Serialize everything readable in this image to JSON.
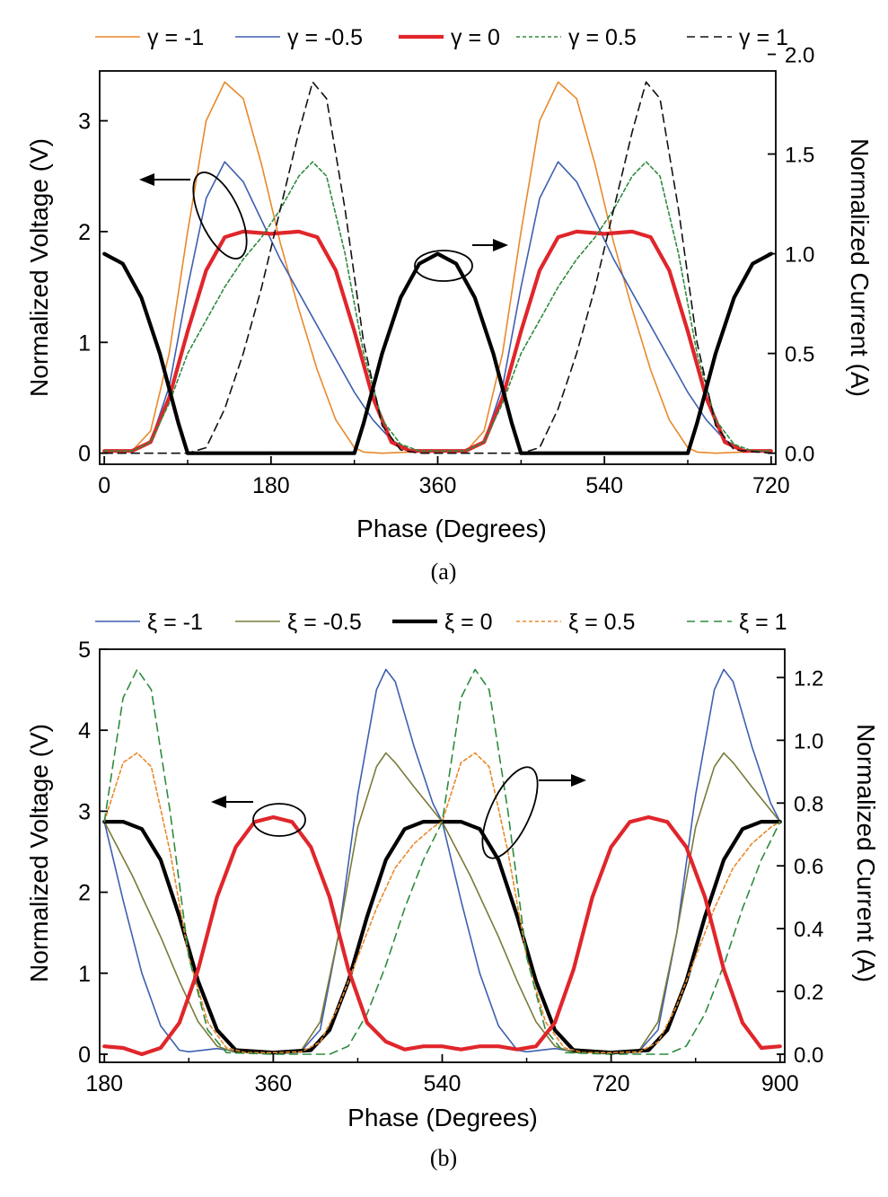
{
  "chart_data": [
    {
      "type": "line",
      "caption": "(a)",
      "xlabel": "Phase (Degrees)",
      "ylabel_left": "Normalized Voltage (V)",
      "ylabel_right": "Normalized Current (A)",
      "xlim": [
        -5,
        725
      ],
      "ylim_left": [
        -0.1,
        3.45
      ],
      "ylim_right": [
        -0.0556,
        1.9167
      ],
      "x_ticks": [
        0,
        180,
        360,
        540,
        720
      ],
      "y_left_ticks": [
        0,
        1,
        2,
        3
      ],
      "y_right_ticks": [
        "0.0",
        "0.5",
        "1.0",
        "1.5",
        "2.0"
      ],
      "legend_position": "top",
      "series": [
        {
          "name": "γ = -1",
          "color": "#e8892a",
          "dash": "solid",
          "width": 1.6,
          "axis": "left",
          "x": [
            0,
            30,
            50,
            70,
            90,
            110,
            130,
            150,
            170,
            190,
            210,
            230,
            250,
            270,
            280,
            300,
            330,
            360,
            390,
            410,
            430,
            450,
            470,
            490,
            510,
            530,
            550,
            570,
            590,
            610,
            630,
            640,
            660,
            690,
            720
          ],
          "values": [
            0.02,
            0.02,
            0.2,
            0.9,
            2.0,
            3.0,
            3.35,
            3.2,
            2.6,
            1.9,
            1.3,
            0.75,
            0.3,
            0.05,
            0.01,
            0.0,
            0.01,
            0.02,
            0.01,
            0.2,
            0.9,
            2.0,
            3.0,
            3.35,
            3.2,
            2.6,
            1.9,
            1.3,
            0.75,
            0.3,
            0.05,
            0.01,
            0.0,
            0.01,
            0.02
          ]
        },
        {
          "name": "γ = -0.5",
          "color": "#3f5fb0",
          "dash": "solid",
          "width": 1.6,
          "axis": "left",
          "x": [
            0,
            30,
            50,
            70,
            90,
            110,
            130,
            150,
            170,
            190,
            210,
            230,
            250,
            270,
            290,
            310,
            330,
            360,
            390,
            410,
            430,
            450,
            470,
            490,
            510,
            530,
            550,
            570,
            590,
            610,
            630,
            650,
            670,
            690,
            720
          ],
          "values": [
            0.02,
            0.02,
            0.1,
            0.6,
            1.5,
            2.3,
            2.63,
            2.45,
            2.1,
            1.75,
            1.45,
            1.15,
            0.85,
            0.55,
            0.3,
            0.12,
            0.03,
            0.02,
            0.02,
            0.1,
            0.6,
            1.5,
            2.3,
            2.63,
            2.45,
            2.1,
            1.75,
            1.45,
            1.15,
            0.85,
            0.55,
            0.3,
            0.12,
            0.03,
            0.02
          ]
        },
        {
          "name": "γ = 0",
          "color": "#e0262b",
          "dash": "solid",
          "width": 4.2,
          "axis": "left",
          "x": [
            0,
            30,
            50,
            70,
            90,
            110,
            130,
            150,
            180,
            210,
            230,
            250,
            270,
            290,
            310,
            330,
            360,
            390,
            410,
            430,
            450,
            470,
            490,
            510,
            540,
            570,
            590,
            610,
            630,
            650,
            670,
            690,
            720
          ],
          "values": [
            0.02,
            0.02,
            0.1,
            0.5,
            1.1,
            1.65,
            1.95,
            2.0,
            1.98,
            2.0,
            1.95,
            1.65,
            1.1,
            0.5,
            0.1,
            0.02,
            0.02,
            0.02,
            0.1,
            0.5,
            1.1,
            1.65,
            1.95,
            2.0,
            1.98,
            2.0,
            1.95,
            1.65,
            1.1,
            0.5,
            0.1,
            0.02,
            0.02
          ]
        },
        {
          "name": "γ = 0.5",
          "color": "#2e8b3e",
          "dash": "4,3",
          "width": 1.6,
          "axis": "left",
          "x": [
            0,
            30,
            50,
            70,
            90,
            110,
            130,
            150,
            170,
            190,
            210,
            225,
            240,
            260,
            280,
            300,
            320,
            340,
            360,
            390,
            410,
            430,
            450,
            470,
            490,
            510,
            530,
            550,
            570,
            585,
            600,
            620,
            640,
            660,
            680,
            700,
            720
          ],
          "values": [
            0.02,
            0.02,
            0.1,
            0.45,
            0.9,
            1.2,
            1.5,
            1.75,
            1.95,
            2.2,
            2.5,
            2.63,
            2.5,
            1.8,
            0.9,
            0.3,
            0.08,
            0.02,
            0.02,
            0.02,
            0.1,
            0.45,
            0.9,
            1.2,
            1.5,
            1.75,
            1.95,
            2.2,
            2.5,
            2.63,
            2.5,
            1.8,
            0.9,
            0.3,
            0.08,
            0.02,
            0.02
          ]
        },
        {
          "name": "γ = 1",
          "color": "#111111",
          "dash": "9,6",
          "width": 1.6,
          "axis": "left",
          "x": [
            0,
            60,
            90,
            110,
            130,
            150,
            170,
            190,
            210,
            225,
            240,
            260,
            280,
            300,
            320,
            340,
            360,
            420,
            450,
            470,
            490,
            510,
            530,
            550,
            570,
            585,
            600,
            620,
            640,
            660,
            680,
            720
          ],
          "values": [
            0.0,
            0.0,
            0.0,
            0.05,
            0.4,
            0.9,
            1.5,
            2.2,
            2.9,
            3.35,
            3.2,
            2.2,
            1.0,
            0.25,
            0.03,
            0.0,
            0.0,
            0.0,
            0.0,
            0.05,
            0.4,
            0.9,
            1.5,
            2.2,
            2.9,
            3.35,
            3.2,
            2.2,
            1.0,
            0.25,
            0.03,
            0.0
          ]
        },
        {
          "name": "",
          "color": "#000000",
          "dash": "solid",
          "width": 4.2,
          "axis": "right",
          "legend": false,
          "x": [
            0,
            20,
            40,
            60,
            80,
            90,
            180,
            270,
            280,
            300,
            320,
            340,
            360,
            380,
            400,
            420,
            440,
            450,
            540,
            630,
            640,
            660,
            680,
            700,
            720
          ],
          "values": [
            1.0,
            0.95,
            0.78,
            0.5,
            0.15,
            0.0,
            0.0,
            0.0,
            0.15,
            0.5,
            0.78,
            0.95,
            1.0,
            0.95,
            0.78,
            0.5,
            0.15,
            0.0,
            0.0,
            0.0,
            0.15,
            0.5,
            0.78,
            0.95,
            1.0
          ]
        }
      ]
    },
    {
      "type": "line",
      "caption": "(b)",
      "xlabel": "Phase (Degrees)",
      "ylabel_left": "Normalized Voltage (V)",
      "ylabel_right": "Normalized Current (A)",
      "xlim": [
        175,
        905
      ],
      "ylim_left": [
        -0.1,
        5.0
      ],
      "ylim_right": [
        -0.0258,
        1.29
      ],
      "x_ticks": [
        180,
        360,
        540,
        720,
        900
      ],
      "y_left_ticks": [
        0,
        1,
        2,
        3,
        4,
        5
      ],
      "y_right_ticks": [
        "0.0",
        "0.2",
        "0.4",
        "0.6",
        "0.8",
        "1.0",
        "1.2"
      ],
      "legend_position": "top",
      "series": [
        {
          "name": "ξ = -1",
          "color": "#3f5fb0",
          "dash": "solid",
          "width": 1.6,
          "axis": "left",
          "x": [
            180,
            200,
            220,
            240,
            260,
            270,
            300,
            330,
            360,
            390,
            410,
            430,
            450,
            470,
            480,
            490,
            510,
            530,
            540,
            560,
            580,
            600,
            620,
            630,
            660,
            690,
            720,
            750,
            770,
            790,
            810,
            830,
            840,
            850,
            870,
            890,
            900
          ],
          "values": [
            2.87,
            1.9,
            1.0,
            0.35,
            0.05,
            0.03,
            0.07,
            0.02,
            0.02,
            0.04,
            0.3,
            1.5,
            3.2,
            4.5,
            4.75,
            4.6,
            3.8,
            3.1,
            2.87,
            1.9,
            1.0,
            0.35,
            0.05,
            0.03,
            0.07,
            0.02,
            0.02,
            0.04,
            0.3,
            1.5,
            3.2,
            4.5,
            4.75,
            4.6,
            3.8,
            3.1,
            2.87
          ]
        },
        {
          "name": "ξ = -0.5",
          "color": "#7a7a3a",
          "dash": "solid",
          "width": 1.6,
          "axis": "left",
          "x": [
            180,
            210,
            240,
            260,
            280,
            300,
            320,
            360,
            390,
            410,
            430,
            450,
            470,
            480,
            490,
            510,
            540,
            570,
            600,
            620,
            640,
            660,
            680,
            720,
            750,
            770,
            790,
            810,
            830,
            840,
            850,
            870,
            900
          ],
          "values": [
            2.87,
            2.2,
            1.45,
            0.9,
            0.4,
            0.1,
            0.02,
            0.02,
            0.05,
            0.4,
            1.5,
            2.8,
            3.55,
            3.72,
            3.6,
            3.3,
            2.87,
            2.2,
            1.45,
            0.9,
            0.4,
            0.1,
            0.02,
            0.02,
            0.05,
            0.4,
            1.5,
            2.8,
            3.55,
            3.72,
            3.6,
            3.3,
            2.87
          ]
        },
        {
          "name": "ξ = 0",
          "color": "#000000",
          "dash": "solid",
          "width": 4.2,
          "axis": "left",
          "x": [
            180,
            200,
            220,
            240,
            260,
            280,
            300,
            320,
            360,
            400,
            420,
            440,
            460,
            480,
            500,
            520,
            540,
            560,
            580,
            600,
            620,
            640,
            660,
            680,
            720,
            760,
            780,
            800,
            820,
            840,
            860,
            880,
            900
          ],
          "values": [
            2.87,
            2.87,
            2.78,
            2.4,
            1.7,
            0.9,
            0.3,
            0.05,
            0.02,
            0.05,
            0.3,
            0.9,
            1.7,
            2.4,
            2.78,
            2.87,
            2.87,
            2.87,
            2.78,
            2.4,
            1.7,
            0.9,
            0.3,
            0.05,
            0.02,
            0.05,
            0.3,
            0.9,
            1.7,
            2.4,
            2.78,
            2.87,
            2.87
          ]
        },
        {
          "name": "ξ = 0.5",
          "color": "#e8892a",
          "dash": "4,3",
          "width": 1.6,
          "axis": "left",
          "x": [
            180,
            200,
            215,
            230,
            250,
            270,
            290,
            310,
            330,
            360,
            390,
            410,
            430,
            450,
            470,
            490,
            510,
            530,
            540,
            560,
            575,
            590,
            610,
            630,
            650,
            670,
            690,
            720,
            750,
            770,
            790,
            810,
            830,
            850,
            870,
            890,
            900
          ],
          "values": [
            2.87,
            3.6,
            3.72,
            3.55,
            2.5,
            1.2,
            0.4,
            0.08,
            0.02,
            0.02,
            0.03,
            0.15,
            0.6,
            1.2,
            1.8,
            2.3,
            2.6,
            2.8,
            2.87,
            3.6,
            3.72,
            3.55,
            2.5,
            1.2,
            0.4,
            0.08,
            0.02,
            0.02,
            0.03,
            0.15,
            0.6,
            1.2,
            1.8,
            2.3,
            2.6,
            2.8,
            2.87
          ]
        },
        {
          "name": "ξ = 1",
          "color": "#2e8b3e",
          "dash": "9,6",
          "width": 1.6,
          "axis": "left",
          "x": [
            180,
            200,
            215,
            230,
            250,
            270,
            290,
            310,
            360,
            420,
            440,
            460,
            480,
            500,
            520,
            540,
            560,
            575,
            590,
            610,
            630,
            650,
            670,
            720,
            780,
            800,
            820,
            840,
            860,
            880,
            900
          ],
          "values": [
            2.87,
            4.4,
            4.75,
            4.5,
            3.0,
            1.2,
            0.3,
            0.02,
            0.0,
            0.0,
            0.1,
            0.5,
            1.1,
            1.8,
            2.4,
            2.87,
            4.4,
            4.75,
            4.5,
            3.0,
            1.2,
            0.3,
            0.02,
            0.0,
            0.0,
            0.1,
            0.5,
            1.1,
            1.8,
            2.4,
            2.87
          ]
        },
        {
          "name": "",
          "color": "#e0262b",
          "dash": "solid",
          "width": 4.2,
          "axis": "right",
          "legend": false,
          "x": [
            180,
            200,
            220,
            240,
            260,
            280,
            300,
            320,
            340,
            360,
            380,
            400,
            420,
            440,
            460,
            480,
            500,
            520,
            540,
            560,
            580,
            600,
            620,
            640,
            660,
            680,
            700,
            720,
            740,
            760,
            780,
            800,
            820,
            840,
            860,
            880,
            900
          ],
          "values": [
            0.025,
            0.02,
            0.0,
            0.02,
            0.1,
            0.27,
            0.5,
            0.66,
            0.74,
            0.755,
            0.74,
            0.66,
            0.5,
            0.27,
            0.1,
            0.04,
            0.015,
            0.025,
            0.025,
            0.015,
            0.025,
            0.025,
            0.015,
            0.025,
            0.1,
            0.27,
            0.5,
            0.66,
            0.74,
            0.755,
            0.74,
            0.66,
            0.5,
            0.27,
            0.1,
            0.02,
            0.025
          ]
        }
      ]
    }
  ]
}
